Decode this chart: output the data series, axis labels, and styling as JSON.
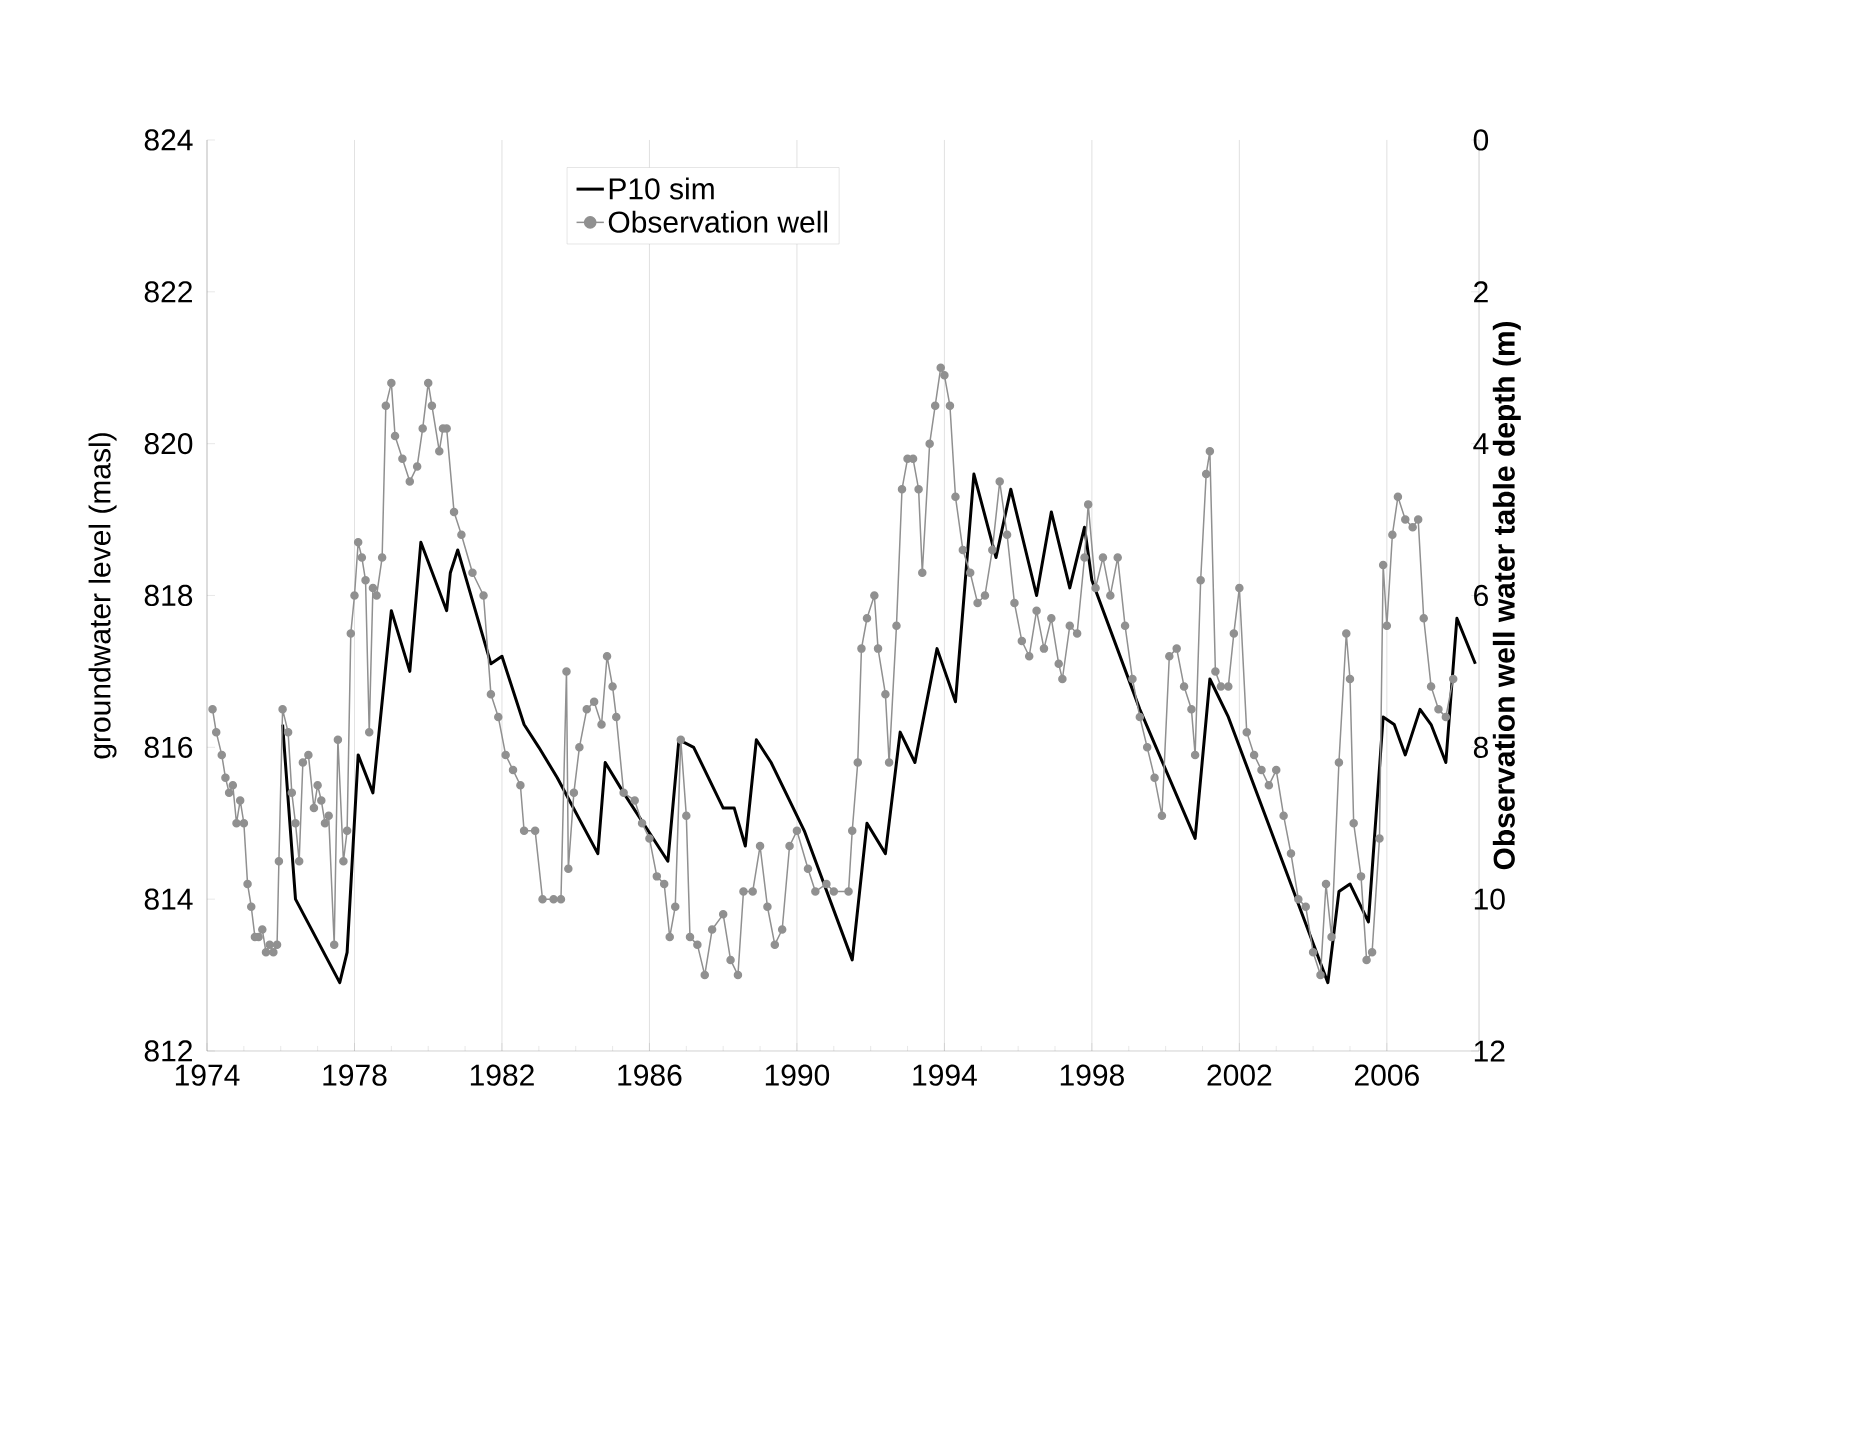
{
  "chart_data": {
    "type": "line",
    "xlim": [
      1974,
      2008.5
    ],
    "xticks": [
      1974,
      1978,
      1982,
      1986,
      1990,
      1994,
      1998,
      2002,
      2006
    ],
    "ylim": [
      812,
      824
    ],
    "yticks": [
      812,
      814,
      816,
      818,
      820,
      822,
      824
    ],
    "y2lim": [
      12,
      0
    ],
    "y2ticks": [
      0,
      2,
      4,
      6,
      8,
      10,
      12
    ],
    "ylabel": "groundwater level (masl)",
    "y2label": "Observation well water table depth (m)",
    "grid": "x",
    "legend": "top",
    "series": [
      {
        "name": "P10 sim",
        "color": "#000000",
        "marker": "none",
        "x": [
          1976.05,
          1976.4,
          1977.6,
          1977.8,
          1978.1,
          1978.5,
          1979.0,
          1979.5,
          1979.8,
          1980.5,
          1980.6,
          1980.8,
          1981.7,
          1982.0,
          1982.6,
          1983.0,
          1983.5,
          1984.6,
          1984.8,
          1985.3,
          1986.5,
          1986.8,
          1987.2,
          1988.0,
          1988.3,
          1988.6,
          1988.9,
          1989.3,
          1990.2,
          1991.5,
          1991.9,
          1992.4,
          1992.8,
          1993.2,
          1993.8,
          1994.3,
          1994.8,
          1995.4,
          1995.8,
          1996.5,
          1996.9,
          1997.4,
          1997.8,
          1998.0,
          1999.3,
          2000.8,
          2001.2,
          2001.7,
          2004.4,
          2004.7,
          2005.0,
          2005.5,
          2005.9,
          2006.2,
          2006.5,
          2006.9,
          2007.2,
          2007.6,
          2007.9,
          2008.4
        ],
        "values": [
          816.3,
          814.0,
          812.9,
          813.3,
          815.9,
          815.4,
          817.8,
          817.0,
          818.7,
          817.8,
          818.3,
          818.6,
          817.1,
          817.2,
          816.3,
          816.0,
          815.6,
          814.6,
          815.8,
          815.4,
          814.5,
          816.1,
          816.0,
          815.2,
          815.2,
          814.7,
          816.1,
          815.8,
          814.9,
          813.2,
          815.0,
          814.6,
          816.2,
          815.8,
          817.3,
          816.6,
          819.6,
          818.5,
          819.4,
          818.0,
          819.1,
          818.1,
          818.9,
          818.2,
          816.5,
          814.8,
          816.9,
          816.4,
          812.9,
          814.1,
          814.2,
          813.7,
          816.4,
          816.3,
          815.9,
          816.5,
          816.3,
          815.8,
          817.7,
          817.1
        ]
      },
      {
        "name": "Observation well",
        "color": "#909090",
        "marker": "circle",
        "x": [
          1974.15,
          1974.25,
          1974.4,
          1974.5,
          1974.6,
          1974.7,
          1974.8,
          1974.9,
          1975.0,
          1975.1,
          1975.2,
          1975.3,
          1975.4,
          1975.5,
          1975.6,
          1975.7,
          1975.8,
          1975.9,
          1975.95,
          1976.05,
          1976.2,
          1976.3,
          1976.4,
          1976.5,
          1976.6,
          1976.75,
          1976.9,
          1977.0,
          1977.1,
          1977.2,
          1977.3,
          1977.45,
          1977.55,
          1977.7,
          1977.8,
          1977.9,
          1978.0,
          1978.1,
          1978.2,
          1978.3,
          1978.4,
          1978.5,
          1978.6,
          1978.75,
          1978.85,
          1979.0,
          1979.1,
          1979.3,
          1979.5,
          1979.7,
          1979.85,
          1980.0,
          1980.1,
          1980.3,
          1980.4,
          1980.5,
          1980.7,
          1980.9,
          1981.2,
          1981.5,
          1981.7,
          1981.9,
          1982.1,
          1982.3,
          1982.5,
          1982.6,
          1982.9,
          1983.1,
          1983.4,
          1983.6,
          1983.75,
          1983.8,
          1983.95,
          1984.1,
          1984.3,
          1984.5,
          1984.7,
          1984.85,
          1985.0,
          1985.1,
          1985.3,
          1985.6,
          1985.8,
          1986.0,
          1986.2,
          1986.4,
          1986.55,
          1986.7,
          1986.85,
          1987.0,
          1987.1,
          1987.3,
          1987.5,
          1987.7,
          1988.0,
          1988.2,
          1988.4,
          1988.55,
          1988.8,
          1989.0,
          1989.2,
          1989.4,
          1989.6,
          1989.8,
          1990.0,
          1990.3,
          1990.5,
          1990.8,
          1991.0,
          1991.4,
          1991.5,
          1991.65,
          1991.75,
          1991.9,
          1992.1,
          1992.2,
          1992.4,
          1992.5,
          1992.7,
          1992.85,
          1993.0,
          1993.15,
          1993.3,
          1993.4,
          1993.6,
          1993.75,
          1993.9,
          1994.0,
          1994.15,
          1994.3,
          1994.5,
          1994.7,
          1994.9,
          1995.1,
          1995.3,
          1995.5,
          1995.7,
          1995.9,
          1996.1,
          1996.3,
          1996.5,
          1996.7,
          1996.9,
          1997.1,
          1997.2,
          1997.4,
          1997.6,
          1997.8,
          1997.9,
          1998.1,
          1998.3,
          1998.5,
          1998.7,
          1998.9,
          1999.1,
          1999.3,
          1999.5,
          1999.7,
          1999.9,
          2000.1,
          2000.3,
          2000.5,
          2000.7,
          2000.8,
          2000.95,
          2001.1,
          2001.2,
          2001.35,
          2001.5,
          2001.7,
          2001.85,
          2002.0,
          2002.2,
          2002.4,
          2002.6,
          2002.8,
          2003.0,
          2003.2,
          2003.4,
          2003.6,
          2003.8,
          2004.0,
          2004.2,
          2004.35,
          2004.5,
          2004.7,
          2004.9,
          2005.0,
          2005.1,
          2005.3,
          2005.45,
          2005.6,
          2005.8,
          2005.9,
          2006.0,
          2006.15,
          2006.3,
          2006.5,
          2006.7,
          2006.85,
          2007.0,
          2007.2,
          2007.4,
          2007.6,
          2007.8
        ],
        "values": [
          816.5,
          816.2,
          815.9,
          815.6,
          815.4,
          815.5,
          815.0,
          815.3,
          815.0,
          814.2,
          813.9,
          813.5,
          813.5,
          813.6,
          813.3,
          813.4,
          813.3,
          813.4,
          814.5,
          816.5,
          816.2,
          815.4,
          815.0,
          814.5,
          815.8,
          815.9,
          815.2,
          815.5,
          815.3,
          815.0,
          815.1,
          813.4,
          816.1,
          814.5,
          814.9,
          817.5,
          818.0,
          818.7,
          818.5,
          818.2,
          816.2,
          818.1,
          818.0,
          818.5,
          820.5,
          820.8,
          820.1,
          819.8,
          819.5,
          819.7,
          820.2,
          820.8,
          820.5,
          819.9,
          820.2,
          820.2,
          819.1,
          818.8,
          818.3,
          818.0,
          816.7,
          816.4,
          815.9,
          815.7,
          815.5,
          814.9,
          814.9,
          814.0,
          814.0,
          814.0,
          817.0,
          814.4,
          815.4,
          816.0,
          816.5,
          816.6,
          816.3,
          817.2,
          816.8,
          816.4,
          815.4,
          815.3,
          815.0,
          814.8,
          814.3,
          814.2,
          813.5,
          813.9,
          816.1,
          815.1,
          813.5,
          813.4,
          813.0,
          813.6,
          813.8,
          813.2,
          813.0,
          814.1,
          814.1,
          814.7,
          813.9,
          813.4,
          813.6,
          814.7,
          814.9,
          814.4,
          814.1,
          814.2,
          814.1,
          814.1,
          814.9,
          815.8,
          817.3,
          817.7,
          818.0,
          817.3,
          816.7,
          815.8,
          817.6,
          819.4,
          819.8,
          819.8,
          819.4,
          818.3,
          820.0,
          820.5,
          821.0,
          820.9,
          820.5,
          819.3,
          818.6,
          818.3,
          817.9,
          818.0,
          818.6,
          819.5,
          818.8,
          817.9,
          817.4,
          817.2,
          817.8,
          817.3,
          817.7,
          817.1,
          816.9,
          817.6,
          817.5,
          818.5,
          819.2,
          818.1,
          818.5,
          818.0,
          818.5,
          817.6,
          816.9,
          816.4,
          816.0,
          815.6,
          815.1,
          817.2,
          817.3,
          816.8,
          816.5,
          815.9,
          818.2,
          819.6,
          819.9,
          817.0,
          816.8,
          816.8,
          817.5,
          818.1,
          816.2,
          815.9,
          815.7,
          815.5,
          815.7,
          815.1,
          814.6,
          814.0,
          813.9,
          813.3,
          813.0,
          814.2,
          813.5,
          815.8,
          817.5,
          816.9,
          815.0,
          814.3,
          813.2,
          813.3,
          814.8,
          818.4,
          817.6,
          818.8,
          819.3,
          819.0,
          818.9,
          819.0,
          817.7,
          816.8,
          816.5,
          816.4,
          816.9
        ]
      }
    ]
  }
}
